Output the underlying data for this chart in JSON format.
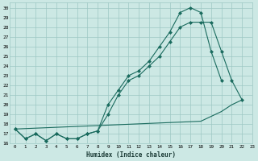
{
  "xlabel": "Humidex (Indice chaleur)",
  "bg_color": "#cce8e4",
  "grid_color": "#9dc8c3",
  "line_color": "#1a6b5e",
  "line1_x": [
    0,
    1,
    2,
    3,
    4,
    5,
    6,
    7,
    8,
    9,
    10,
    11,
    12,
    13,
    14,
    15,
    16,
    17,
    18,
    19,
    20
  ],
  "line1_y": [
    17.5,
    16.5,
    17.0,
    16.3,
    17.0,
    16.5,
    16.5,
    17.0,
    17.3,
    20.0,
    21.5,
    23.0,
    23.5,
    24.5,
    26.0,
    27.5,
    29.5,
    30.0,
    29.5,
    25.5,
    22.5
  ],
  "line2_x": [
    0,
    1,
    2,
    3,
    4,
    5,
    6,
    7,
    8,
    9,
    10,
    11,
    12,
    13,
    14,
    15,
    16,
    17,
    18,
    19,
    20,
    21,
    22
  ],
  "line2_y": [
    17.5,
    16.5,
    17.0,
    16.3,
    17.0,
    16.5,
    16.5,
    17.0,
    17.3,
    19.0,
    21.0,
    22.5,
    23.0,
    24.0,
    25.0,
    26.5,
    28.0,
    28.5,
    28.5,
    28.5,
    25.5,
    22.5,
    20.5
  ],
  "line3_x": [
    0,
    18,
    19,
    20,
    21,
    22
  ],
  "line3_y": [
    17.5,
    18.3,
    18.8,
    19.3,
    20.0,
    20.5
  ],
  "ylim": [
    16,
    30.5
  ],
  "xlim": [
    -0.5,
    23
  ],
  "yticks": [
    16,
    17,
    18,
    19,
    20,
    21,
    22,
    23,
    24,
    25,
    26,
    27,
    28,
    29,
    30
  ],
  "xticks": [
    0,
    1,
    2,
    3,
    4,
    5,
    6,
    7,
    8,
    9,
    10,
    11,
    12,
    13,
    14,
    15,
    16,
    17,
    18,
    19,
    20,
    21,
    22,
    23
  ]
}
